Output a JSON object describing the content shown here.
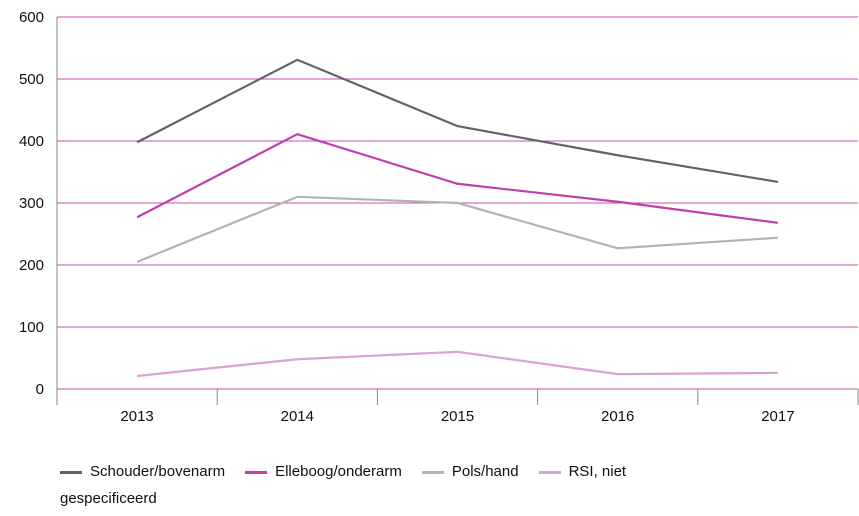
{
  "chart_data": {
    "type": "line",
    "categories": [
      "2013",
      "2014",
      "2015",
      "2016",
      "2017"
    ],
    "series": [
      {
        "name": "Schouder/bovenarm",
        "color": "#636363",
        "values": [
          398,
          531,
          424,
          377,
          334
        ]
      },
      {
        "name": "Elleboog/onderarm",
        "color": "#c03fa9",
        "values": [
          277,
          411,
          331,
          302,
          268
        ]
      },
      {
        "name": "Pols/hand",
        "color": "#b3b3b3",
        "values": [
          205,
          310,
          300,
          227,
          244
        ]
      },
      {
        "name": "RSI, niet gespecificeerd",
        "color": "#d9a3d3",
        "values": [
          21,
          48,
          60,
          24,
          26
        ]
      }
    ],
    "ylim": [
      0,
      600
    ],
    "yticks": [
      0,
      100,
      200,
      300,
      400,
      500,
      600
    ],
    "grid": true,
    "legend": "bottom"
  }
}
